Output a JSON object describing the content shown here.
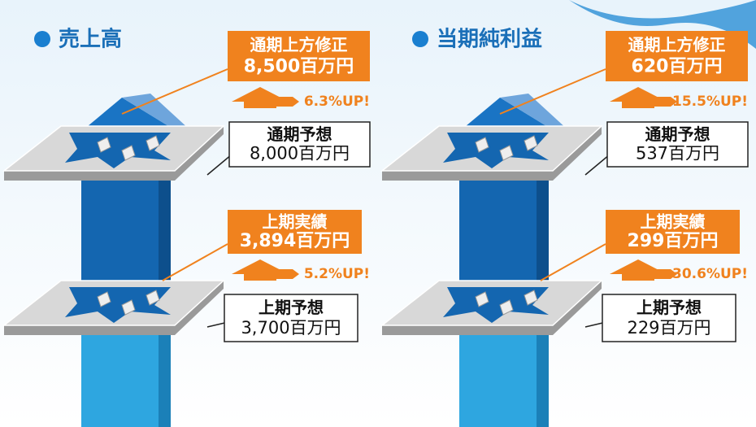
{
  "panels": [
    {
      "title": "売上高",
      "revised": {
        "label": "通期上方修正",
        "value": "8,500百万円"
      },
      "revised_change": "6.3%UP!",
      "full_year_forecast": {
        "label": "通期予想",
        "value": "8,000百万円"
      },
      "h1_actual": {
        "label": "上期実績",
        "value": "3,894百万円"
      },
      "h1_change": "5.2%UP!",
      "h1_forecast": {
        "label": "上期予想",
        "value": "3,700百万円"
      }
    },
    {
      "title": "当期純利益",
      "revised": {
        "label": "通期上方修正",
        "value": "620百万円"
      },
      "revised_change": "15.5%UP!",
      "full_year_forecast": {
        "label": "通期予想",
        "value": "537百万円"
      },
      "h1_actual": {
        "label": "上期実績",
        "value": "299百万円"
      },
      "h1_change": "30.6%UP!",
      "h1_forecast": {
        "label": "上期予想",
        "value": "229百万円"
      }
    }
  ]
}
